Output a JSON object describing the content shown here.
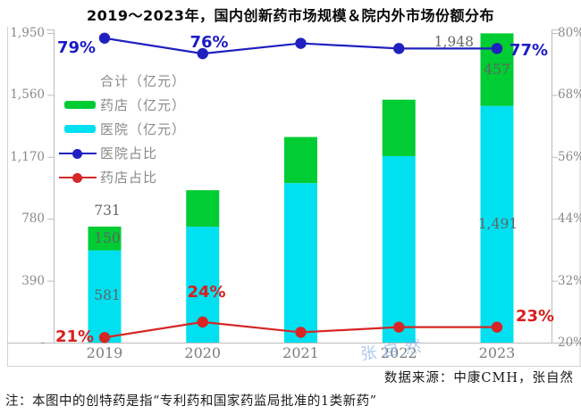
{
  "title": "2019～2023年，国内创新药市场规模＆院内外市场份额分布",
  "legend": {
    "items": [
      {
        "label": "合计（亿元）",
        "swatch": "none",
        "color": ""
      },
      {
        "label": "药店（亿元）",
        "swatch": "bar",
        "color": "#00CC33"
      },
      {
        "label": "医院（亿元）",
        "swatch": "bar",
        "color": "#00E0F0"
      },
      {
        "label": "医院占比",
        "swatch": "line",
        "color": "#2020C0"
      },
      {
        "label": "药店占比",
        "swatch": "line",
        "color": "#D62626"
      }
    ]
  },
  "chart_data": {
    "type": "bar",
    "subtype": "stacked-bar-with-percent-lines",
    "categories": [
      "2019",
      "2020",
      "2021",
      "2022",
      "2023"
    ],
    "series": [
      {
        "name": "医院（亿元）",
        "kind": "bar",
        "stack": "total",
        "color": "#00E0F0",
        "values": [
          581,
          730,
          1005,
          1175,
          1491
        ]
      },
      {
        "name": "药店（亿元）",
        "kind": "bar",
        "stack": "total",
        "color": "#00CC33",
        "values": [
          150,
          230,
          290,
          355,
          457
        ]
      },
      {
        "name": "医院占比",
        "kind": "line",
        "axis": "right",
        "color": "#2020C0",
        "values": [
          79,
          76,
          78,
          77,
          77
        ]
      },
      {
        "name": "药店占比",
        "kind": "line",
        "axis": "right",
        "color": "#D62626",
        "values": [
          21,
          24,
          22,
          23,
          23
        ]
      }
    ],
    "totals": [
      731,
      960,
      1295,
      1530,
      1948
    ],
    "left_axis": {
      "ticks": [
        "1,950",
        "1,560",
        "1,170",
        "780",
        "390",
        "-"
      ],
      "values": [
        1950,
        1560,
        1170,
        780,
        390,
        0
      ],
      "range": [
        0,
        1950
      ]
    },
    "right_axis": {
      "ticks": [
        "80%",
        "68%",
        "56%",
        "44%",
        "32%",
        "20%"
      ],
      "values": [
        80,
        68,
        56,
        44,
        32,
        20
      ],
      "range": [
        20,
        80
      ]
    },
    "grid": false,
    "legend_position": "upper-left-inside"
  },
  "labels": {
    "total_2019": "731",
    "pharmacy_2019": "150",
    "hospital_2019": "581",
    "total_2023": "1,948",
    "pharmacy_2023": "457",
    "hospital_2023": "1,491",
    "hosp_pct_2019": "79%",
    "hosp_pct_2020": "76%",
    "hosp_pct_2023": "77%",
    "pharm_pct_2019": "21%",
    "pharm_pct_2020": "24%",
    "pharm_pct_2023": "23%"
  },
  "watermark": "张自然",
  "source": "数据来源：中康CMH，张自然",
  "note": "注：本图中的创特药是指“专利药和国家药监局批准的1类新药”"
}
